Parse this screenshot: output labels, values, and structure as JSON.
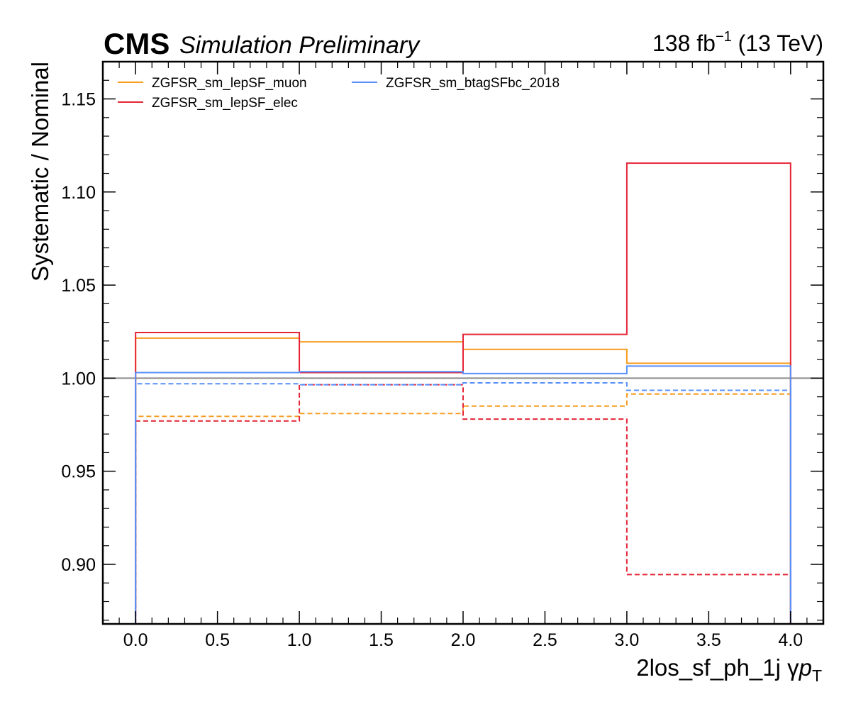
{
  "header": {
    "experiment": "CMS",
    "status": "Simulation Preliminary",
    "lumi_value": "138 fb",
    "lumi_exponent": "−1",
    "energy": " (13 TeV)"
  },
  "chart_data": {
    "type": "line",
    "style": "step-histogram",
    "bin_edges": [
      0.0,
      1.0,
      2.0,
      3.0,
      4.0
    ],
    "xlabel_main": "2los_sf_ph_1j   γ",
    "xlabel_var": "p",
    "xlabel_sub": "T",
    "ylabel": "Systematic / Nominal",
    "xlim": [
      -0.2,
      4.2
    ],
    "ylim": [
      0.868,
      1.17
    ],
    "x_ticks": [
      0.0,
      0.5,
      1.0,
      1.5,
      2.0,
      2.5,
      3.0,
      3.5,
      4.0
    ],
    "x_tick_labels": [
      "0.0",
      "0.5",
      "1.0",
      "1.5",
      "2.0",
      "2.5",
      "3.0",
      "3.5",
      "4.0"
    ],
    "y_ticks": [
      0.9,
      0.95,
      1.0,
      1.05,
      1.1,
      1.15
    ],
    "y_tick_labels": [
      "0.90",
      "0.95",
      "1.00",
      "1.05",
      "1.10",
      "1.15"
    ],
    "reference_line": 1.0,
    "reference_color": "#8c8c8c",
    "grid": false,
    "legend_position": "top-left",
    "series": [
      {
        "name": "ZGFSR_sm_lepSF_muon",
        "color": "#f89c20",
        "variation": "up",
        "values": [
          1.0215,
          1.0195,
          1.0155,
          1.008
        ]
      },
      {
        "name": "ZGFSR_sm_lepSF_muon",
        "color": "#f89c20",
        "variation": "down",
        "values": [
          0.9795,
          0.981,
          0.985,
          0.9915
        ]
      },
      {
        "name": "ZGFSR_sm_lepSF_elec",
        "color": "#e42536",
        "variation": "up",
        "values": [
          1.0245,
          1.003,
          1.0235,
          1.1155
        ]
      },
      {
        "name": "ZGFSR_sm_lepSF_elec",
        "color": "#e42536",
        "variation": "down",
        "values": [
          0.977,
          0.9965,
          0.978,
          0.8945
        ]
      },
      {
        "name": "ZGFSR_sm_btagSFbc_2018",
        "color": "#5790fc",
        "variation": "up",
        "values": [
          1.003,
          1.0035,
          1.0025,
          1.0065
        ]
      },
      {
        "name": "ZGFSR_sm_btagSFbc_2018",
        "color": "#5790fc",
        "variation": "down",
        "values": [
          0.997,
          0.9965,
          0.9975,
          0.9935
        ]
      }
    ],
    "legend": [
      {
        "label": "ZGFSR_sm_lepSF_muon",
        "color": "#f89c20"
      },
      {
        "label": "ZGFSR_sm_lepSF_elec",
        "color": "#e42536"
      },
      {
        "label": "ZGFSR_sm_btagSFbc_2018",
        "color": "#5790fc"
      }
    ]
  }
}
